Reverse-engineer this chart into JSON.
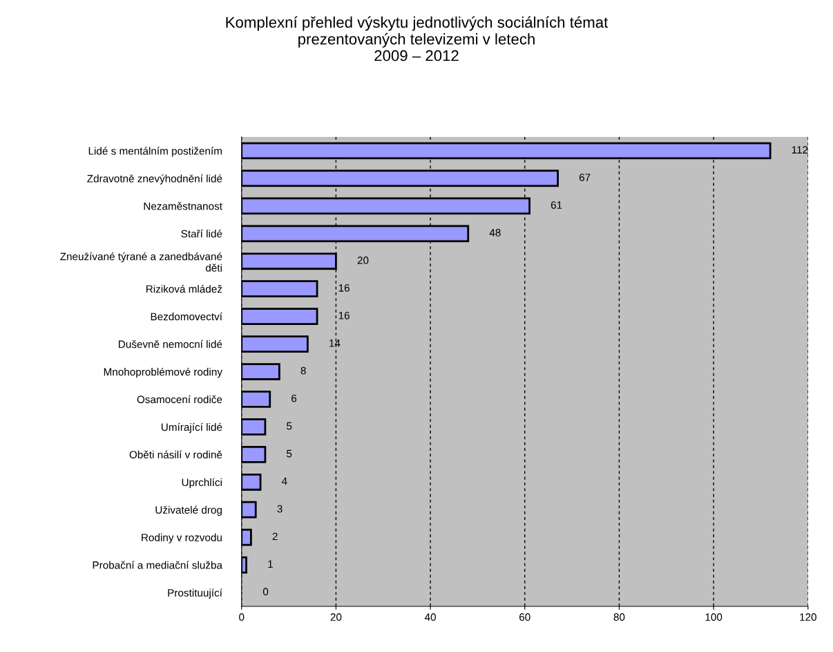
{
  "chart_data": {
    "type": "bar",
    "orientation": "horizontal",
    "title": "Komplexní přehled výskytu jednotlivých sociálních témat\nprezentovaných televizemi v letech\n2009 – 2012",
    "categories": [
      "Lidé s mentálním postižením",
      "Zdravotně znevýhodnění lidé",
      "Nezaměstnanost",
      "Staří lidé",
      "Zneužívané týrané a zanedbávané\nděti",
      "Riziková mládež",
      "Bezdomovectví",
      "Duševně nemocní lidé",
      "Mnohoproblémové rodiny",
      "Osamocení rodiče",
      "Umírající lidé",
      "Oběti násilí v rodině",
      "Uprchlíci",
      "Uživatelé drog",
      "Rodiny v rozvodu",
      "Probační a mediační služba",
      "Prostituující"
    ],
    "values": [
      112,
      67,
      61,
      48,
      20,
      16,
      16,
      14,
      8,
      6,
      5,
      5,
      4,
      3,
      2,
      1,
      0
    ],
    "color": "#9999ff",
    "xlim": [
      0,
      120
    ],
    "xticks": [
      0,
      20,
      40,
      60,
      80,
      100,
      120
    ],
    "grid": "x",
    "data_labels": true
  }
}
